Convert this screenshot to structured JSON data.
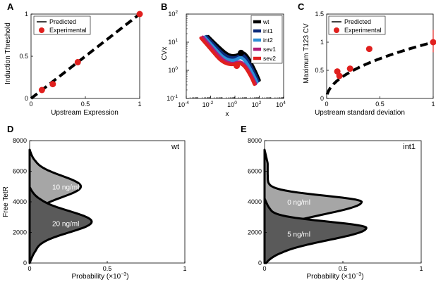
{
  "colors": {
    "dark_gray": "#5a5a5a",
    "light_gray": "#a6a6a6",
    "red": "#e0201e",
    "black": "#000000",
    "wt": "#000000",
    "int1": "#0b2a7a",
    "int2": "#2d8fd6",
    "sev1": "#b01e78",
    "sev2": "#e0201e"
  },
  "chart_data": [
    {
      "id": "A",
      "type": "scatter",
      "panel_label": "A",
      "xlabel": "Upstream Expression",
      "ylabel": "Induction Threshold",
      "xlim": [
        0,
        1
      ],
      "ylim": [
        0,
        1
      ],
      "xticks": [
        {
          "v": 0,
          "label": "0"
        },
        {
          "v": 0.5,
          "label": "0.5"
        },
        {
          "v": 1,
          "label": "1"
        }
      ],
      "yticks": [
        {
          "v": 0,
          "label": "0"
        },
        {
          "v": 0.5,
          "label": "0.5"
        },
        {
          "v": 1,
          "label": "1"
        }
      ],
      "legend": [
        {
          "label": "Predicted",
          "kind": "line"
        },
        {
          "label": "Experimental",
          "kind": "marker"
        }
      ],
      "predicted": {
        "x": [
          0,
          1
        ],
        "y": [
          0,
          1
        ]
      },
      "experimental": {
        "x": [
          0.1,
          0.2,
          0.43,
          1.0
        ],
        "y": [
          0.1,
          0.17,
          0.43,
          1.0
        ]
      }
    },
    {
      "id": "B",
      "type": "line",
      "panel_label": "B",
      "xlabel": "x",
      "ylabel": "CVx",
      "xscale": "log",
      "yscale": "log",
      "xlim_exp": [
        -4,
        4
      ],
      "ylim_exp": [
        -1,
        2
      ],
      "xticks": [
        {
          "e": -4,
          "label": "10",
          "sup": "-4"
        },
        {
          "e": -2,
          "label": "10",
          "sup": "-2"
        },
        {
          "e": 0,
          "label": "10",
          "sup": "0"
        },
        {
          "e": 2,
          "label": "10",
          "sup": "2"
        },
        {
          "e": 4,
          "label": "10",
          "sup": "4"
        }
      ],
      "yticks": [
        {
          "e": -1,
          "label": "10",
          "sup": "-1"
        },
        {
          "e": 0,
          "label": "10",
          "sup": "0"
        },
        {
          "e": 1,
          "label": "10",
          "sup": "1"
        },
        {
          "e": 2,
          "label": "10",
          "sup": "2"
        }
      ],
      "series": [
        {
          "name": "wt",
          "color": "#000000",
          "log_points": [
            [
              -2.2,
              1.2
            ],
            [
              -1.5,
              0.9
            ],
            [
              -0.6,
              0.55
            ],
            [
              0.0,
              0.5
            ],
            [
              0.5,
              0.62
            ],
            [
              0.8,
              0.62
            ],
            [
              1.2,
              0.38
            ],
            [
              1.7,
              -0.05
            ],
            [
              2.0,
              -0.35
            ]
          ]
        },
        {
          "name": "int1",
          "color": "#0b2a7a",
          "log_points": [
            [
              -2.35,
              1.2
            ],
            [
              -1.6,
              0.85
            ],
            [
              -0.8,
              0.5
            ],
            [
              0.0,
              0.42
            ],
            [
              0.45,
              0.55
            ],
            [
              0.7,
              0.55
            ],
            [
              1.1,
              0.32
            ],
            [
              1.6,
              -0.1
            ],
            [
              1.9,
              -0.38
            ]
          ]
        },
        {
          "name": "int2",
          "color": "#2d8fd6",
          "log_points": [
            [
              -2.5,
              1.18
            ],
            [
              -1.7,
              0.8
            ],
            [
              -0.9,
              0.42
            ],
            [
              -0.1,
              0.33
            ],
            [
              0.35,
              0.45
            ],
            [
              0.6,
              0.45
            ],
            [
              1.0,
              0.25
            ],
            [
              1.5,
              -0.15
            ],
            [
              1.8,
              -0.42
            ]
          ]
        },
        {
          "name": "sev1",
          "color": "#b01e78",
          "log_points": [
            [
              -2.65,
              1.18
            ],
            [
              -1.8,
              0.75
            ],
            [
              -1.0,
              0.35
            ],
            [
              -0.2,
              0.22
            ],
            [
              0.25,
              0.3
            ],
            [
              0.5,
              0.3
            ],
            [
              0.9,
              0.15
            ],
            [
              1.4,
              -0.22
            ],
            [
              1.7,
              -0.48
            ]
          ]
        },
        {
          "name": "sev2",
          "color": "#e0201e",
          "log_points": [
            [
              -2.8,
              1.15
            ],
            [
              -1.9,
              0.7
            ],
            [
              -1.1,
              0.3
            ],
            [
              -0.3,
              0.18
            ],
            [
              0.2,
              0.25
            ],
            [
              0.45,
              0.25
            ],
            [
              0.85,
              0.12
            ],
            [
              1.35,
              -0.25
            ],
            [
              1.6,
              -0.5
            ]
          ]
        }
      ],
      "markers": [
        {
          "series": "wt",
          "lx": 0.5,
          "ly": 0.62
        },
        {
          "series": "sev2",
          "lx": 0.15,
          "ly": 0.16
        }
      ]
    },
    {
      "id": "C",
      "type": "scatter",
      "panel_label": "C",
      "xlabel": "Upstream standard deviation",
      "ylabel": "Maximum T123 CV",
      "xlim": [
        0,
        1
      ],
      "ylim": [
        0,
        1.5
      ],
      "xticks": [
        {
          "v": 0,
          "label": "0"
        },
        {
          "v": 0.5,
          "label": "0.5"
        },
        {
          "v": 1,
          "label": "1"
        }
      ],
      "yticks": [
        {
          "v": 0,
          "label": "0"
        },
        {
          "v": 0.5,
          "label": "0.5"
        },
        {
          "v": 1,
          "label": "1"
        },
        {
          "v": 1.5,
          "label": "1.5"
        }
      ],
      "legend": [
        {
          "label": "Predicted",
          "kind": "line"
        },
        {
          "label": "Experimental",
          "kind": "marker"
        }
      ],
      "predicted_curve": "y = sqrt(x)",
      "experimental": {
        "x": [
          0.1,
          0.12,
          0.22,
          0.4,
          1.0
        ],
        "y": [
          0.48,
          0.4,
          0.53,
          0.88,
          1.0
        ]
      },
      "errorbar": {
        "x": 1.0,
        "ymin": 0.82,
        "ymax": 1.22
      }
    },
    {
      "id": "D",
      "type": "area",
      "panel_label": "D",
      "annotation": "wt",
      "xlabel": "Probability (×10",
      "xlabel_sup": "−3",
      "xlabel_close": ")",
      "ylabel": "Free TetR",
      "xlim": [
        0,
        1
      ],
      "ylim": [
        0,
        8000
      ],
      "xticks": [
        {
          "v": 0,
          "label": "0"
        },
        {
          "v": 0.5,
          "label": "0.5"
        },
        {
          "v": 1,
          "label": "1"
        }
      ],
      "yticks": [
        {
          "v": 0,
          "label": "0"
        },
        {
          "v": 2000,
          "label": "2000"
        },
        {
          "v": 4000,
          "label": "4000"
        },
        {
          "v": 6000,
          "label": "6000"
        },
        {
          "v": 8000,
          "label": "8000"
        }
      ],
      "distributions": [
        {
          "label": "10 ng/ml",
          "fill": "#a6a6a6",
          "center": 5000,
          "sigma": 700,
          "amp": 0.31,
          "base": 0.02,
          "label_pos": [
            0.1,
            5000
          ]
        },
        {
          "label": "20 ng/ml",
          "fill": "#5a5a5a",
          "center": 2700,
          "sigma": 700,
          "amp": 0.37,
          "base": 0.03,
          "label_pos": [
            0.1,
            2600
          ]
        }
      ]
    },
    {
      "id": "E",
      "type": "area",
      "panel_label": "E",
      "annotation": "int1",
      "xlabel": "Probability (×10",
      "xlabel_sup": "−3",
      "xlabel_close": ")",
      "ylabel": "",
      "xlim": [
        0,
        1
      ],
      "ylim": [
        0,
        8000
      ],
      "xticks": [
        {
          "v": 0,
          "label": "0"
        },
        {
          "v": 0.5,
          "label": "0.5"
        },
        {
          "v": 1,
          "label": "1"
        }
      ],
      "yticks": [
        {
          "v": 0,
          "label": "0"
        },
        {
          "v": 2000,
          "label": "2000"
        },
        {
          "v": 4000,
          "label": "4000"
        },
        {
          "v": 6000,
          "label": "6000"
        },
        {
          "v": 8000,
          "label": "8000"
        }
      ],
      "distributions": [
        {
          "label": "0 ng/ml",
          "fill": "#a6a6a6",
          "center": 4000,
          "sigma": 600,
          "amp": 0.6,
          "base": 0.02,
          "skew": true,
          "label_pos": [
            0.1,
            4000
          ]
        },
        {
          "label": "5 ng/ml",
          "fill": "#5a5a5a",
          "center": 2300,
          "sigma": 600,
          "amp": 0.62,
          "base": 0.03,
          "skew": true,
          "label_pos": [
            0.1,
            1900
          ]
        }
      ]
    }
  ]
}
